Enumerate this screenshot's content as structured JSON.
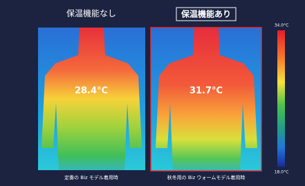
{
  "panels": [
    {
      "title": "保温機能なし",
      "temperature": "28.4°C",
      "caption": "定番の Biz モデル着用時"
    },
    {
      "title": "保温機能あり",
      "temperature": "31.7°C",
      "caption": "秋冬用の Biz ウォームモデル着用時"
    }
  ],
  "scale": {
    "max_label": "34.0°C",
    "min_label": "18.0°C"
  }
}
